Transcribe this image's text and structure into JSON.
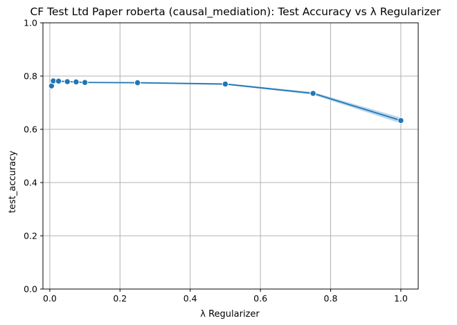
{
  "chart_data": {
    "type": "line",
    "title": "CF Test Ltd Paper roberta (causal_mediation): Test Accuracy vs λ Regularizer",
    "xlabel": "λ Regularizer",
    "ylabel": "test_accuracy",
    "xlim": [
      -0.0195,
      1.0495
    ],
    "ylim": [
      0.0,
      1.0
    ],
    "x_ticks": [
      "0.0",
      "0.2",
      "0.4",
      "0.6",
      "0.8",
      "1.0"
    ],
    "x_tick_values": [
      0.0,
      0.2,
      0.4,
      0.6,
      0.8,
      1.0
    ],
    "y_ticks": [
      "0.0",
      "0.2",
      "0.4",
      "0.6",
      "0.8",
      "1.0"
    ],
    "y_tick_values": [
      0.0,
      0.2,
      0.4,
      0.6,
      0.8,
      1.0
    ],
    "grid": true,
    "color": "#1f77b4",
    "band_color": "#a6c8e8",
    "series": [
      {
        "x": [
          0.005,
          0.01,
          0.025,
          0.05,
          0.075,
          0.1,
          0.25,
          0.5,
          0.75,
          1.0
        ],
        "y": [
          0.763,
          0.782,
          0.781,
          0.779,
          0.778,
          0.776,
          0.775,
          0.77,
          0.735,
          0.633
        ],
        "ci_low": [
          0.761,
          0.78,
          0.779,
          0.777,
          0.776,
          0.774,
          0.772,
          0.767,
          0.73,
          0.622
        ],
        "ci_high": [
          0.765,
          0.784,
          0.783,
          0.781,
          0.78,
          0.778,
          0.778,
          0.773,
          0.74,
          0.644
        ]
      }
    ]
  }
}
